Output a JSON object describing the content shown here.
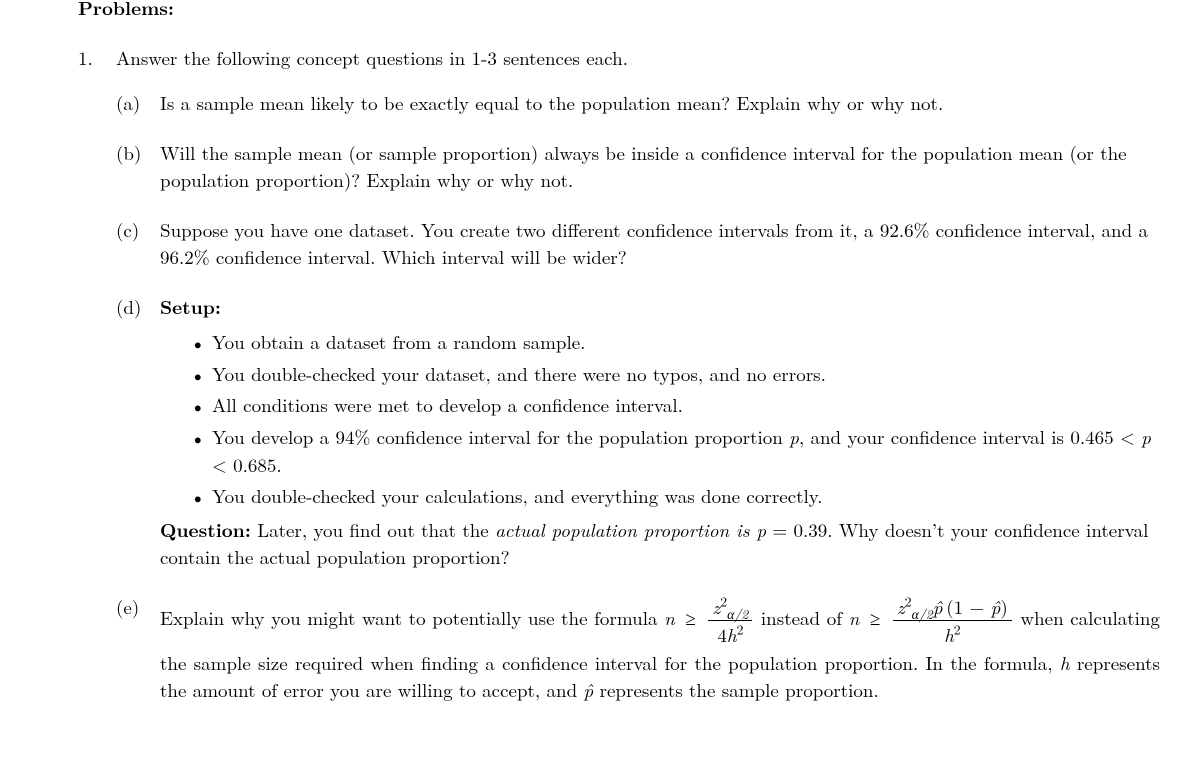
{
  "heading": "Problems:",
  "problem_number": "1.",
  "problem_prompt": "Answer the following concept questions in 1-3 sentences each.",
  "parts": {
    "a": {
      "label": "(a)",
      "text": "Is a sample mean likely to be exactly equal to the population mean?  Explain why or why not."
    },
    "b": {
      "label": "(b)",
      "text": "Will the sample mean (or sample proportion) always be inside a confidence interval for the population mean (or the population proportion)?  Explain why or why not."
    },
    "c": {
      "label": "(c)",
      "text": "Suppose you have one dataset.  You create two different confidence intervals from it, a 92.6% confidence interval, and a 96.2% confidence interval.  Which interval will be wider?"
    },
    "d": {
      "label": "(d)",
      "setup_label": "Setup:",
      "bullets": [
        "You obtain a dataset from a random sample.",
        "You double-checked your dataset, and there were no typos, and no errors.",
        "All conditions were met to develop a confidence interval.",
        "You develop a 94% confidence interval for the population proportion ",
        ", and your confidence interval is 0.465 < ",
        " < 0.685.",
        "You double-checked your calculations, and everything was done correctly."
      ],
      "question_label": "Question:",
      "question_1": "  Later, you find out that the ",
      "question_italic": "actual population proportion is ",
      "question_eq": " = 0.39",
      "question_2": ".  Why doesn’t your confidence interval contain the actual population proportion?",
      "p_sym": "p"
    },
    "e": {
      "label": "(e)",
      "t1": "Explain why you might want to potentially use the formula ",
      "t2": " instead of ",
      "t3": " when calculating the sample size required when finding a confidence interval for the population proportion.  In the formula, ",
      "t4": " represents the amount of error you are willing to accept, and ",
      "t5": " represents the sample proportion.",
      "n_sym": "n",
      "h_sym": "h",
      "p_sym": "p",
      "phat_sym": "p̂",
      "z_sym": "z",
      "sub_expr": "α/2",
      "geq": "≥",
      "four": "4"
    }
  }
}
